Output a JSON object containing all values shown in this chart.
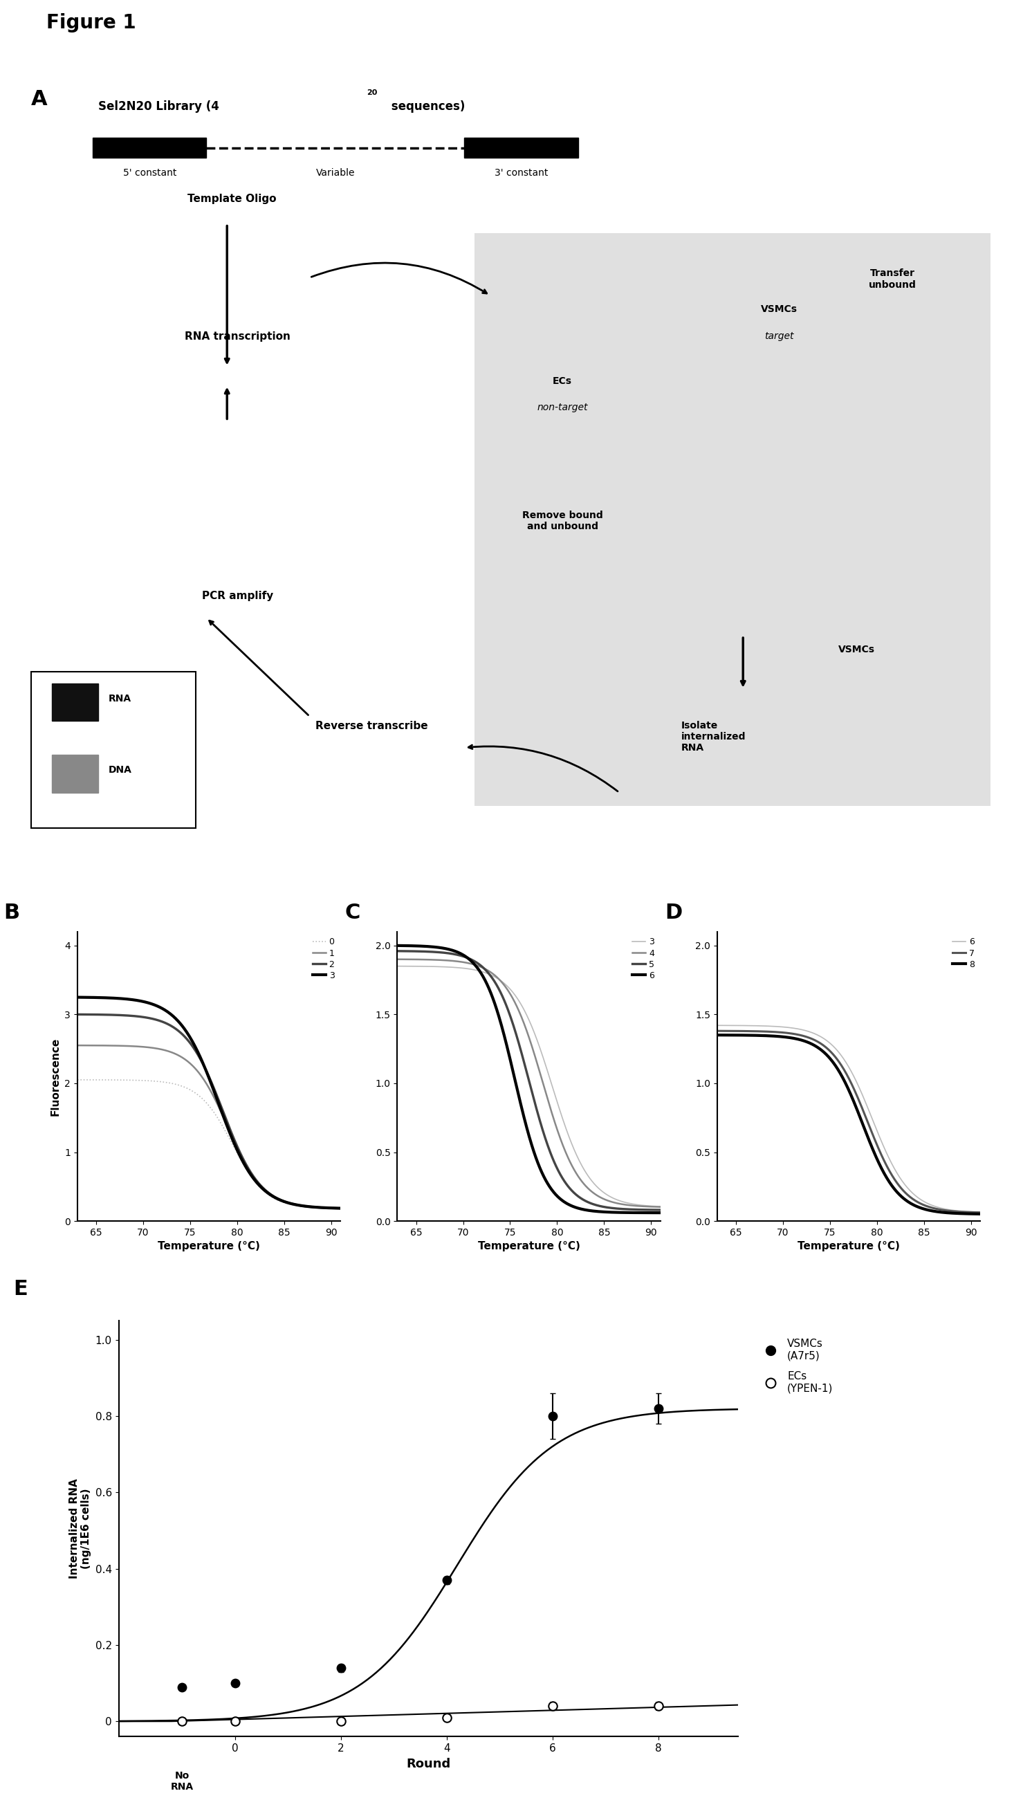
{
  "figure_title": "Figure 1",
  "panel_B": {
    "label": "B",
    "xlabel": "Temperature (°C)",
    "ylabel": "Fluorescence",
    "xlim": [
      63,
      91
    ],
    "ylim": [
      0,
      4.2
    ],
    "xticks": [
      65,
      70,
      75,
      80,
      85,
      90
    ],
    "yticks": [
      0,
      1.0,
      2.0,
      3.0,
      4.0
    ],
    "legend_labels": [
      "0",
      "1",
      "2",
      "3"
    ],
    "curve_params": [
      {
        "start": 2.05,
        "end": 0.18,
        "tm": 79.5,
        "steep": 0.55,
        "color": "#bbbbbb",
        "lw": 1.2,
        "ls": "dotted"
      },
      {
        "start": 2.55,
        "end": 0.18,
        "tm": 79.0,
        "steep": 0.52,
        "color": "#888888",
        "lw": 1.8,
        "ls": "solid"
      },
      {
        "start": 3.0,
        "end": 0.18,
        "tm": 78.5,
        "steep": 0.5,
        "color": "#444444",
        "lw": 2.4,
        "ls": "solid"
      },
      {
        "start": 3.25,
        "end": 0.18,
        "tm": 78.0,
        "steep": 0.48,
        "color": "#000000",
        "lw": 3.0,
        "ls": "solid"
      }
    ]
  },
  "panel_C": {
    "label": "C",
    "xlabel": "Temperature (°C)",
    "xlim": [
      63,
      91
    ],
    "ylim": [
      0,
      2.1
    ],
    "xticks": [
      65,
      70,
      75,
      80,
      85,
      90
    ],
    "yticks": [
      0,
      0.5,
      1.0,
      1.5,
      2.0
    ],
    "legend_labels": [
      "3",
      "4",
      "5",
      "6"
    ],
    "curve_params": [
      {
        "start": 1.85,
        "end": 0.1,
        "tm": 79.5,
        "steep": 0.5,
        "color": "#bbbbbb",
        "lw": 1.2,
        "ls": "solid"
      },
      {
        "start": 1.9,
        "end": 0.1,
        "tm": 78.5,
        "steep": 0.52,
        "color": "#888888",
        "lw": 1.8,
        "ls": "solid"
      },
      {
        "start": 1.96,
        "end": 0.08,
        "tm": 77.0,
        "steep": 0.55,
        "color": "#444444",
        "lw": 2.4,
        "ls": "solid"
      },
      {
        "start": 2.0,
        "end": 0.06,
        "tm": 75.5,
        "steep": 0.6,
        "color": "#000000",
        "lw": 3.0,
        "ls": "solid"
      }
    ]
  },
  "panel_D": {
    "label": "D",
    "xlabel": "Temperature (°C)",
    "xlim": [
      63,
      91
    ],
    "ylim": [
      0,
      2.1
    ],
    "xticks": [
      65,
      70,
      75,
      80,
      85,
      90
    ],
    "yticks": [
      0,
      0.5,
      1.0,
      1.5,
      2.0
    ],
    "legend_labels": [
      "6",
      "7",
      "8"
    ],
    "curve_params": [
      {
        "start": 1.42,
        "end": 0.06,
        "tm": 79.5,
        "steep": 0.5,
        "color": "#bbbbbb",
        "lw": 1.2,
        "ls": "solid"
      },
      {
        "start": 1.38,
        "end": 0.06,
        "tm": 79.0,
        "steep": 0.52,
        "color": "#555555",
        "lw": 2.2,
        "ls": "solid"
      },
      {
        "start": 1.35,
        "end": 0.05,
        "tm": 78.5,
        "steep": 0.54,
        "color": "#000000",
        "lw": 3.0,
        "ls": "solid"
      }
    ]
  },
  "panel_E": {
    "label": "E",
    "xlabel": "Round",
    "ylabel": "Internalized RNA\n(ng/1E6 cells)",
    "xlim": [
      -2.2,
      9.5
    ],
    "ylim": [
      -0.04,
      1.05
    ],
    "xticks": [
      -1,
      0,
      2,
      4,
      6,
      8
    ],
    "xticklabels": [
      "No\nRNA",
      "0",
      "2",
      "4",
      "6",
      "8"
    ],
    "yticks": [
      0.0,
      0.2,
      0.4,
      0.6,
      0.8,
      1.0
    ],
    "vsmc_label": "VSMCs\n(A7r5)",
    "ec_label": "ECs\n(YPEN-1)",
    "vsmc_x": [
      -1,
      0,
      2,
      4,
      6,
      8
    ],
    "vsmc_y": [
      0.09,
      0.1,
      0.14,
      0.37,
      0.8,
      0.82
    ],
    "vsmc_error": [
      0.0,
      0.0,
      0.01,
      0.01,
      0.06,
      0.04
    ],
    "ec_x": [
      -1,
      0,
      2,
      4,
      6,
      8
    ],
    "ec_y": [
      0.0,
      0.0,
      0.0,
      0.01,
      0.04,
      0.04
    ],
    "ec_error": [
      0.0,
      0.0,
      0.0,
      0.0,
      0.01,
      0.01
    ],
    "vsmc_sigmoid_k": 1.1,
    "vsmc_sigmoid_x0": 4.2,
    "vsmc_sigmoid_L": 0.82,
    "ec_line_slope": 0.004,
    "ec_line_intercept": 0.005
  },
  "background_color": "#ffffff"
}
